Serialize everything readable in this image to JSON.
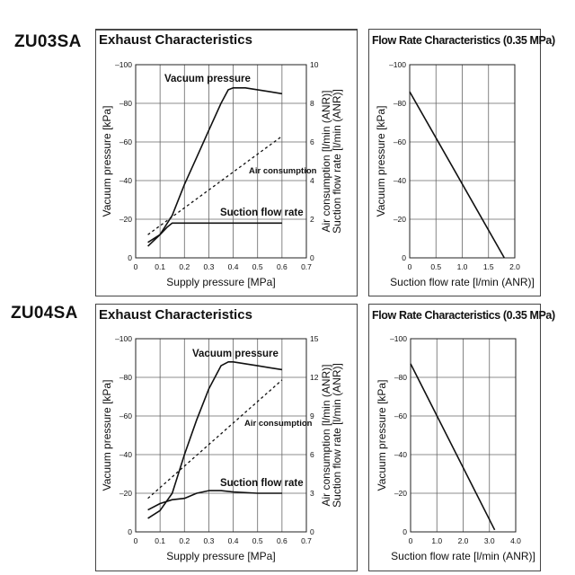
{
  "page": {
    "models": [
      {
        "name": "ZU03SA",
        "exhaust_title": "Exhaust Characteristics",
        "flow_title": "Flow Rate Characteristics (0.35 MPa)"
      },
      {
        "name": "ZU04SA",
        "exhaust_title": "Exhaust Characteristics",
        "flow_title": "Flow Rate Characteristics (0.35 MPa)"
      }
    ]
  },
  "chart_data": [
    {
      "id": "zu03sa-exhaust",
      "type": "line",
      "title": "Exhaust Characteristics",
      "xlabel": "Supply pressure [MPa]",
      "ylabel": "Vacuum pressure [kPa]",
      "y2label": "Air consumption [l/min (ANR)]\nSuction flow rate [l/min (ANR)]",
      "xlim": [
        0,
        0.7
      ],
      "ylim": [
        0,
        -100
      ],
      "y2lim": [
        0,
        10
      ],
      "x_ticks": [
        "0",
        "0.1",
        "0.2",
        "0.3",
        "0.4",
        "0.5",
        "0.6",
        "0.7"
      ],
      "y_ticks": [
        "0",
        "–20",
        "–40",
        "–60",
        "–80",
        "–100"
      ],
      "y2_ticks": [
        "0",
        "2",
        "4",
        "6",
        "8",
        "10"
      ],
      "grid": true,
      "series": [
        {
          "name": "Vacuum pressure",
          "axis": "left",
          "style": "solid",
          "x": [
            0.05,
            0.1,
            0.15,
            0.2,
            0.25,
            0.3,
            0.35,
            0.38,
            0.4,
            0.45,
            0.5,
            0.55,
            0.6
          ],
          "y": [
            -6,
            -12,
            -22,
            -38,
            -52,
            -66,
            -80,
            -87,
            -88,
            -88,
            -87,
            -86,
            -85
          ]
        },
        {
          "name": "Air consumption",
          "axis": "right",
          "style": "dashed",
          "x": [
            0.05,
            0.6
          ],
          "y": [
            1.2,
            6.3
          ]
        },
        {
          "name": "Suction flow rate",
          "axis": "right",
          "style": "solid",
          "x": [
            0.05,
            0.1,
            0.13,
            0.15,
            0.2,
            0.3,
            0.4,
            0.5,
            0.6
          ],
          "y": [
            0.8,
            1.2,
            1.6,
            1.8,
            1.8,
            1.8,
            1.8,
            1.8,
            1.8
          ]
        }
      ]
    },
    {
      "id": "zu03sa-flow",
      "type": "line",
      "title": "Flow Rate Characteristics (0.35 MPa)",
      "xlabel": "Suction flow rate [l/min (ANR)]",
      "ylabel": "Vacuum pressure [kPa]",
      "xlim": [
        0,
        2.0
      ],
      "ylim": [
        0,
        -100
      ],
      "x_ticks": [
        "0",
        "0.5",
        "1.0",
        "1.5",
        "2.0"
      ],
      "y_ticks": [
        "0",
        "–20",
        "–40",
        "–60",
        "–80",
        "–100"
      ],
      "grid": true,
      "series": [
        {
          "x": [
            0,
            1.8
          ],
          "y": [
            -86,
            0
          ]
        }
      ]
    },
    {
      "id": "zu04sa-exhaust",
      "type": "line",
      "title": "Exhaust Characteristics",
      "xlabel": "Supply pressure [MPa]",
      "ylabel": "Vacuum pressure [kPa]",
      "y2label": "Air consumption [l/min (ANR)]\nSuction flow rate [l/min (ANR)]",
      "xlim": [
        0,
        0.7
      ],
      "ylim": [
        0,
        -100
      ],
      "y2lim": [
        0,
        15
      ],
      "x_ticks": [
        "0",
        "0.1",
        "0.2",
        "0.3",
        "0.4",
        "0.5",
        "0.6",
        "0.7"
      ],
      "y_ticks": [
        "0",
        "–20",
        "–40",
        "–60",
        "–80",
        "–100"
      ],
      "y2_ticks": [
        "0",
        "3",
        "6",
        "9",
        "12",
        "15"
      ],
      "grid": true,
      "series": [
        {
          "name": "Vacuum pressure",
          "axis": "left",
          "style": "solid",
          "x": [
            0.05,
            0.1,
            0.15,
            0.2,
            0.25,
            0.3,
            0.35,
            0.38,
            0.4,
            0.45,
            0.5,
            0.55,
            0.6
          ],
          "y": [
            -7,
            -11,
            -20,
            -40,
            -58,
            -74,
            -86,
            -88,
            -88,
            -87,
            -86,
            -85,
            -84
          ]
        },
        {
          "name": "Air consumption",
          "axis": "right",
          "style": "dashed",
          "x": [
            0.05,
            0.6
          ],
          "y": [
            2.6,
            11.8
          ]
        },
        {
          "name": "Suction flow rate",
          "axis": "right",
          "style": "solid",
          "x": [
            0.05,
            0.1,
            0.15,
            0.2,
            0.25,
            0.3,
            0.35,
            0.4,
            0.5,
            0.6
          ],
          "y": [
            1.7,
            2.2,
            2.5,
            2.6,
            3.0,
            3.2,
            3.2,
            3.1,
            3.0,
            3.0
          ]
        }
      ]
    },
    {
      "id": "zu04sa-flow",
      "type": "line",
      "title": "Flow Rate Characteristics (0.35 MPa)",
      "xlabel": "Suction flow rate [l/min (ANR)]",
      "ylabel": "Vacuum pressure [kPa]",
      "xlim": [
        0,
        4.0
      ],
      "ylim": [
        0,
        -100
      ],
      "x_ticks": [
        "0",
        "1.0",
        "2.0",
        "3.0",
        "4.0"
      ],
      "y_ticks": [
        "0",
        "–20",
        "–40",
        "–60",
        "–80",
        "–100"
      ],
      "grid": true,
      "series": [
        {
          "x": [
            0,
            3.2
          ],
          "y": [
            -87,
            -1
          ]
        }
      ]
    }
  ]
}
